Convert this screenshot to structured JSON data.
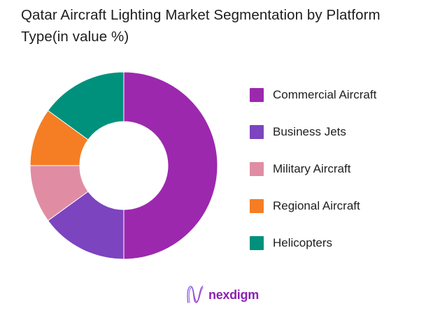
{
  "title": "Qatar Aircraft Lighting Market Segmentation by Platform Type(in value %)",
  "chart_data": {
    "type": "pie",
    "subtype": "donut",
    "title": "Qatar Aircraft Lighting Market Segmentation by Platform Type(in value %)",
    "categories": [
      "Commercial Aircraft",
      "Business Jets",
      "Military Aircraft",
      "Regional Aircraft",
      "Helicopters"
    ],
    "values": [
      50,
      15,
      10,
      10,
      15
    ],
    "unit": "%",
    "colors": [
      "#9c28ae",
      "#7c44bf",
      "#e08da4",
      "#f57e24",
      "#00917d"
    ],
    "start_angle_deg": 0,
    "direction": "clockwise",
    "inner_radius_ratio": 0.47,
    "legend_position": "right",
    "data_labels": "none"
  },
  "legend": {
    "items": [
      {
        "label": "Commercial Aircraft",
        "color": "#9c28ae"
      },
      {
        "label": "Business Jets",
        "color": "#7c44bf"
      },
      {
        "label": "Military Aircraft",
        "color": "#e08da4"
      },
      {
        "label": "Regional Aircraft",
        "color": "#f57e24"
      },
      {
        "label": "Helicopters",
        "color": "#00917d"
      }
    ]
  },
  "footer": {
    "brand": "nexdigm",
    "brand_color": "#8b22b1",
    "logo_gradient_start": "#7158e2",
    "logo_gradient_end": "#a526c9"
  }
}
